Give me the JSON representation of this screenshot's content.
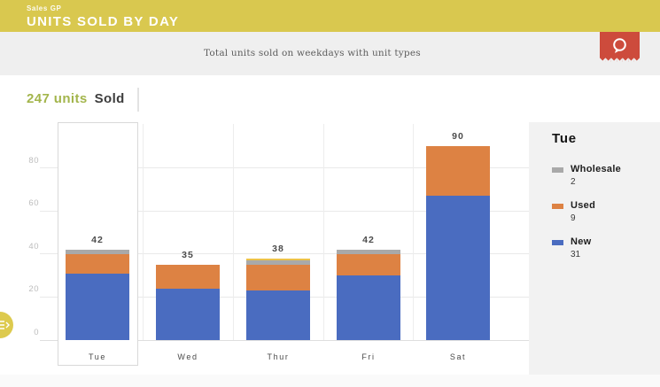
{
  "header": {
    "app_label": "Sales GP",
    "title": "UNITS SOLD BY DAY",
    "bg_color": "#d9c84f"
  },
  "subheader": {
    "text": "Total units sold on weekdays with unit types"
  },
  "ribbon": {
    "icon": "speech-bubble-icon",
    "color": "#cd4b3c"
  },
  "summary": {
    "count_label": "247 units",
    "suffix_label": "Sold",
    "accent_color": "#a3b54c"
  },
  "fab": {
    "icon": "menu-arrow-icon",
    "color": "#ddca4e"
  },
  "chart_data": {
    "type": "bar",
    "stacked": true,
    "title": "247 units Sold",
    "categories": [
      "Tue",
      "Wed",
      "Thur",
      "Fri",
      "Sat"
    ],
    "series": [
      {
        "name": "New",
        "color": "#4a6cc0",
        "values": [
          31,
          24,
          23,
          30,
          67
        ]
      },
      {
        "name": "Used",
        "color": "#dd8243",
        "values": [
          9,
          11,
          12,
          10,
          23
        ]
      },
      {
        "name": "Wholesale",
        "color": "#a9a9a9",
        "values": [
          2,
          0,
          2,
          2,
          0
        ]
      },
      {
        "name": "",
        "color": "#ecc249",
        "values": [
          0,
          0,
          1,
          0,
          0
        ]
      }
    ],
    "totals": [
      42,
      35,
      38,
      42,
      90
    ],
    "y_ticks": [
      0,
      20,
      40,
      60,
      80
    ],
    "ylim": [
      0,
      100
    ],
    "grid": true,
    "legend_position": "right-panel",
    "selected_category": "Tue"
  },
  "detail_panel": {
    "title": "Tue",
    "items": [
      {
        "label": "Wholesale",
        "value": "2",
        "color": "#a9a9a9"
      },
      {
        "label": "Used",
        "value": "9",
        "color": "#dd8243"
      },
      {
        "label": "New",
        "value": "31",
        "color": "#4a6cc0"
      }
    ]
  }
}
